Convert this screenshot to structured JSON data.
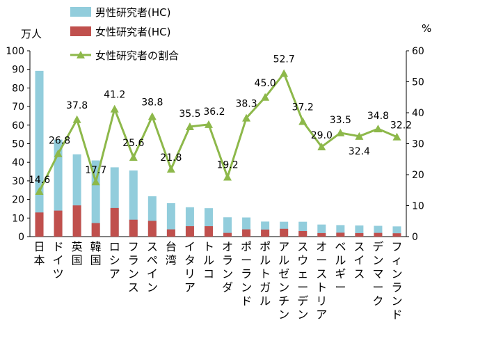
{
  "chart_data": {
    "type": "bar",
    "categories": [
      "日本",
      "ドイツ",
      "英国",
      "韓国",
      "ロシア",
      "フランス",
      "スペイン",
      "台湾",
      "イタリア",
      "トルコ",
      "オランダ",
      "ポーランド",
      "ポルトガル",
      "アルゼンチン",
      "スウェーデン",
      "オーストリア",
      "ベルギー",
      "スイス",
      "デンマーク",
      "フィンランド"
    ],
    "series": [
      {
        "name": "男性研究者(HC)",
        "type": "bar",
        "axis": "left",
        "color": "#92cddc",
        "values": [
          89.2,
          52.2,
          44.3,
          41.0,
          37.3,
          35.6,
          21.7,
          18.0,
          15.8,
          15.3,
          10.4,
          10.3,
          8.1,
          8.0,
          8.0,
          6.5,
          6.2,
          6.0,
          5.8,
          5.5
        ]
      },
      {
        "name": "女性研究者(HC)",
        "type": "bar",
        "axis": "left",
        "color": "#c0504d",
        "values": [
          13.0,
          14.0,
          16.8,
          7.3,
          15.4,
          9.1,
          8.5,
          3.9,
          5.6,
          5.6,
          2.0,
          3.9,
          3.8,
          4.2,
          3.0,
          1.9,
          2.1,
          1.9,
          2.0,
          1.8
        ]
      },
      {
        "name": "女性研究者の割合",
        "type": "line",
        "axis": "right",
        "color": "#8db84a",
        "values": [
          14.6,
          26.8,
          37.8,
          17.7,
          41.2,
          25.6,
          38.8,
          21.8,
          35.5,
          36.2,
          19.2,
          38.3,
          45.0,
          52.7,
          37.2,
          29.0,
          33.5,
          32.4,
          34.8,
          32.2
        ],
        "labels": [
          "14.6",
          "26.8",
          "37.8",
          "17.7",
          "41.2",
          "25.6",
          "38.8",
          "21.8",
          "35.5",
          "36.2",
          "19.2",
          "38.3",
          "45.0",
          "52.7",
          "37.2",
          "29.0",
          "33.5",
          "32.4",
          "34.8",
          "32.2"
        ]
      }
    ],
    "y_left": {
      "unit": "万人",
      "ylim": [
        0,
        100
      ],
      "ticks": [
        "0",
        "10",
        "20",
        "30",
        "40",
        "50",
        "60",
        "70",
        "80",
        "90",
        "100"
      ]
    },
    "y_right": {
      "unit": "%",
      "ylim": [
        0,
        60
      ],
      "ticks": [
        "0",
        "10",
        "20",
        "30",
        "40",
        "50",
        "60"
      ]
    },
    "title": "",
    "legend_position": "top-left",
    "grid": false
  }
}
